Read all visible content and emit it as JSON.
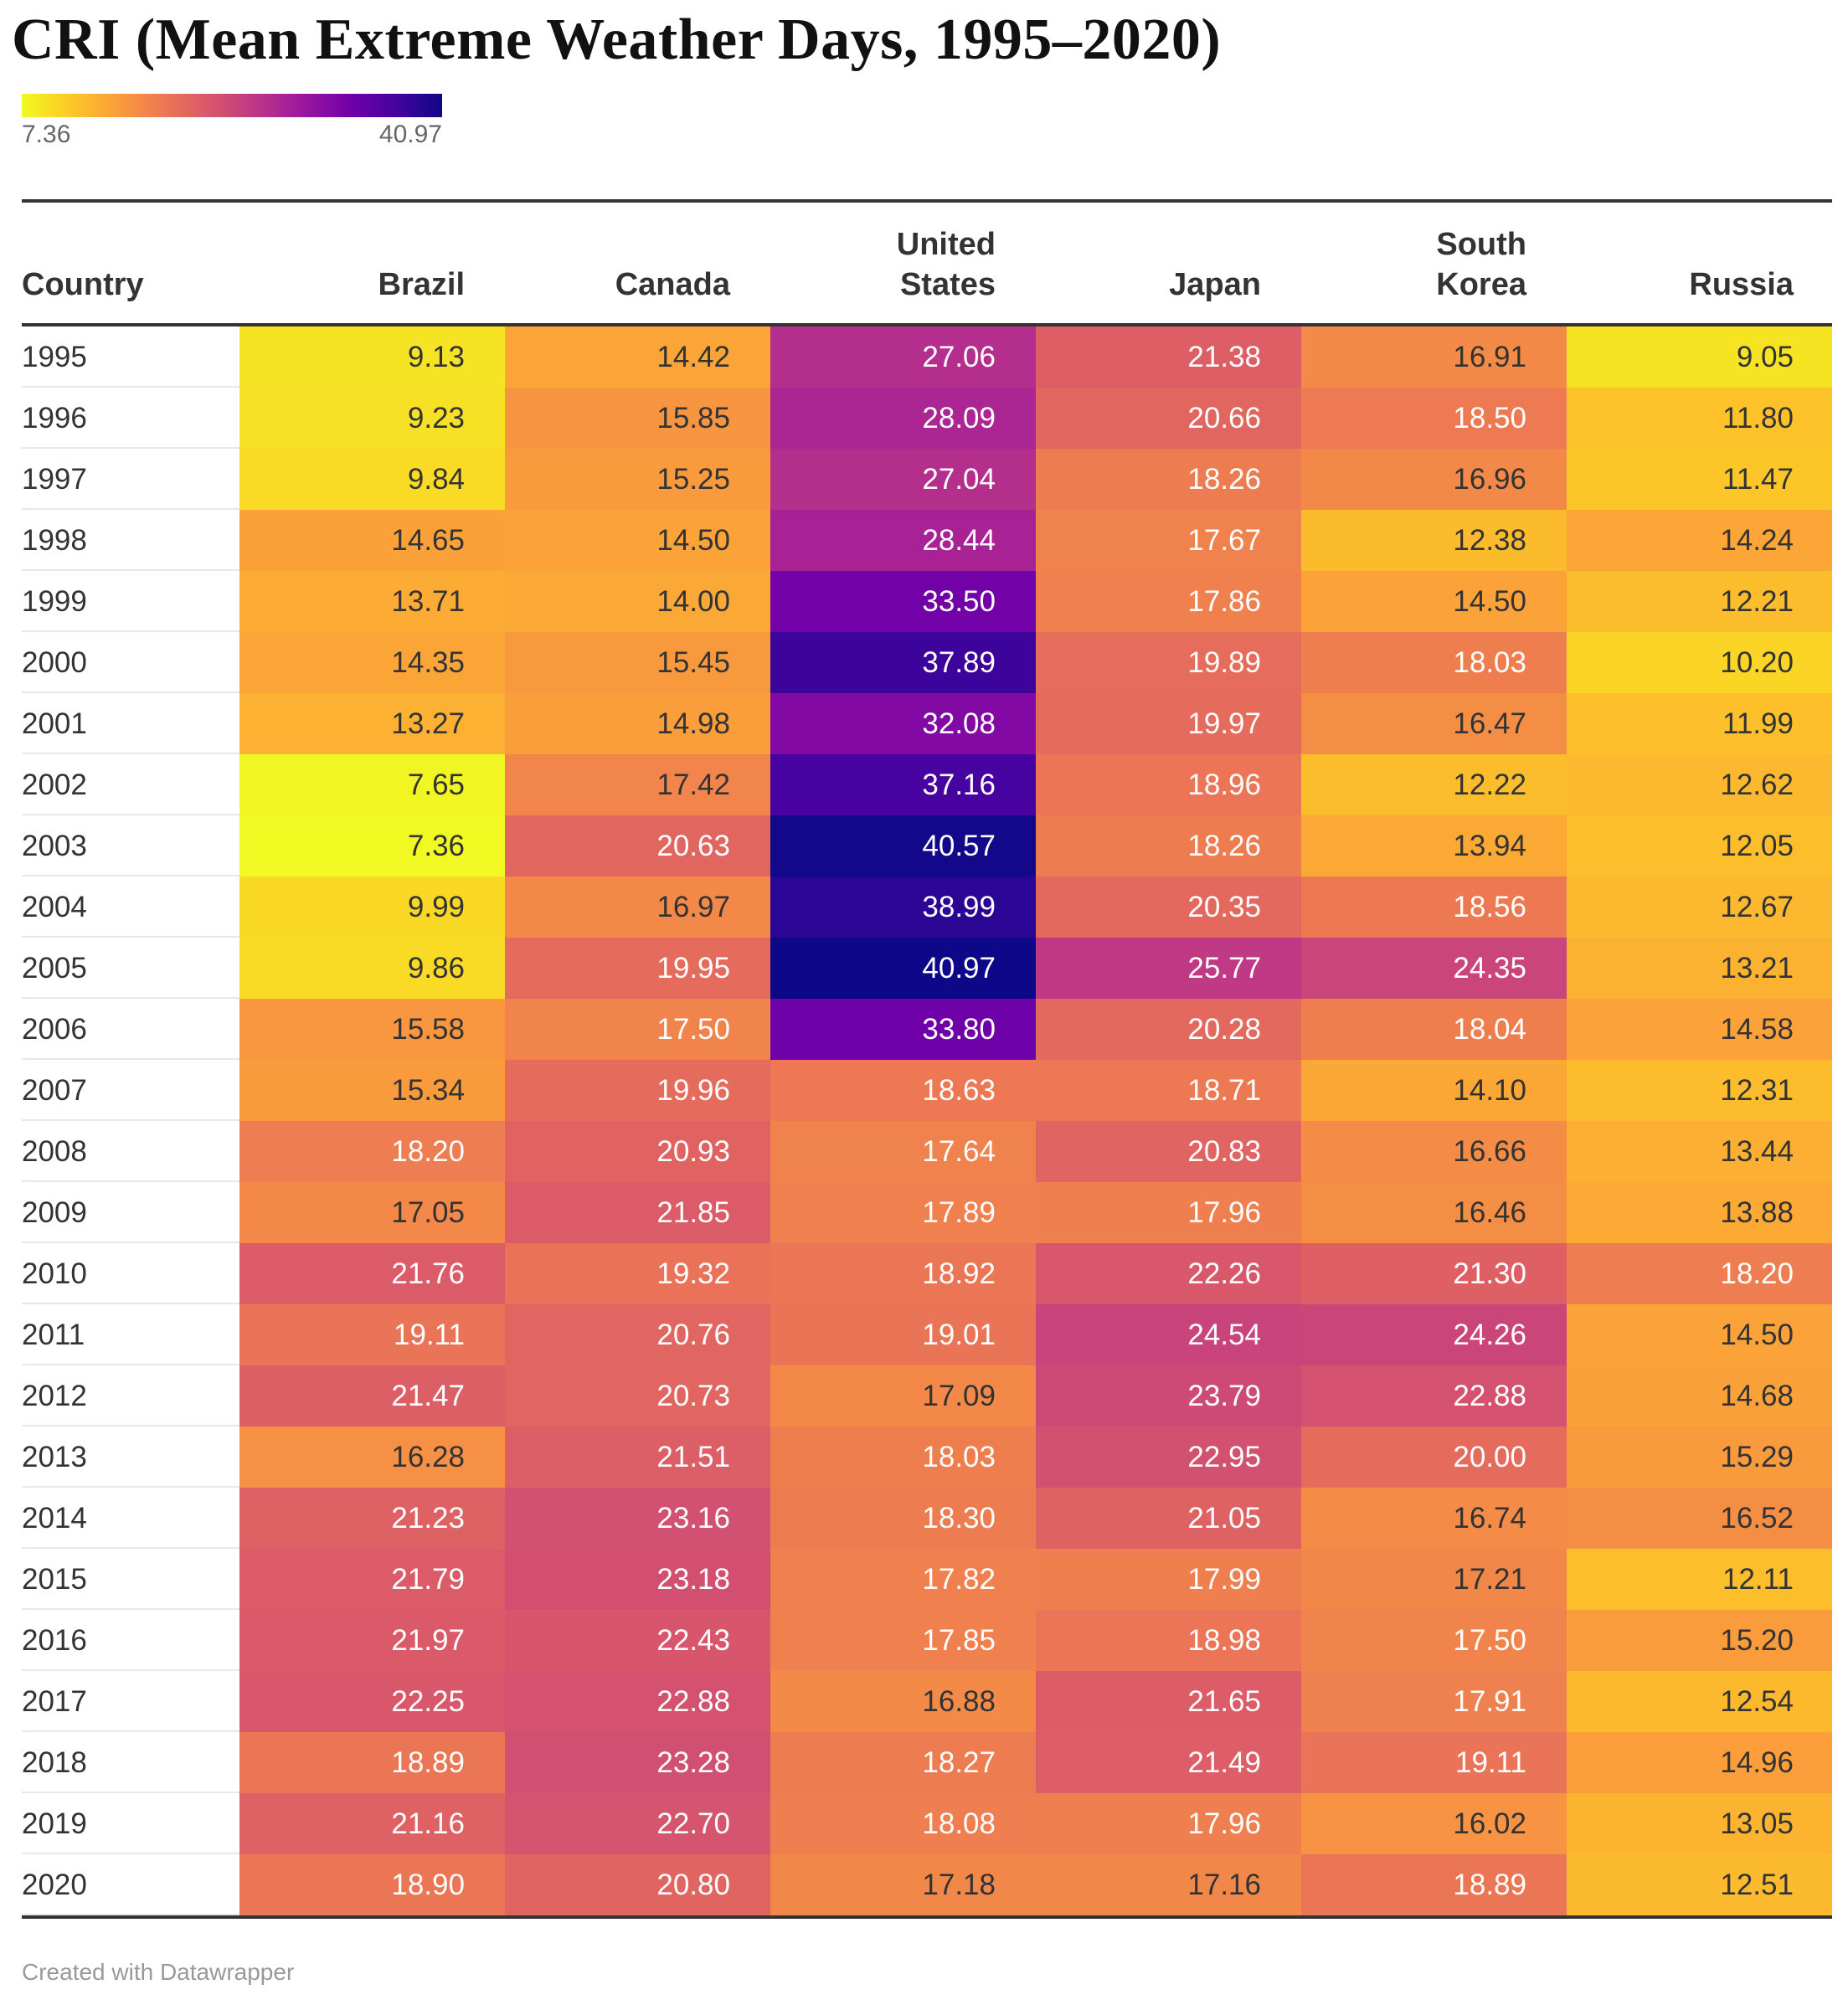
{
  "chart_data": {
    "type": "table",
    "title": "CRI (Mean Extreme Weather Days, 1995–2020)",
    "legend": {
      "min": "7.36",
      "max": "40.97",
      "min_value": 7.36,
      "max_value": 40.97
    },
    "row_header": "Country",
    "columns": [
      {
        "label_lines": [
          "Brazil"
        ]
      },
      {
        "label_lines": [
          "Canada"
        ]
      },
      {
        "label_lines": [
          "United",
          "States"
        ]
      },
      {
        "label_lines": [
          "Japan"
        ]
      },
      {
        "label_lines": [
          "South",
          "Korea"
        ]
      },
      {
        "label_lines": [
          "Russia"
        ]
      }
    ],
    "rows": [
      {
        "year": "1995",
        "values": [
          "9.13",
          "14.42",
          "27.06",
          "21.38",
          "16.91",
          "9.05"
        ]
      },
      {
        "year": "1996",
        "values": [
          "9.23",
          "15.85",
          "28.09",
          "20.66",
          "18.50",
          "11.80"
        ]
      },
      {
        "year": "1997",
        "values": [
          "9.84",
          "15.25",
          "27.04",
          "18.26",
          "16.96",
          "11.47"
        ]
      },
      {
        "year": "1998",
        "values": [
          "14.65",
          "14.50",
          "28.44",
          "17.67",
          "12.38",
          "14.24"
        ]
      },
      {
        "year": "1999",
        "values": [
          "13.71",
          "14.00",
          "33.50",
          "17.86",
          "14.50",
          "12.21"
        ]
      },
      {
        "year": "2000",
        "values": [
          "14.35",
          "15.45",
          "37.89",
          "19.89",
          "18.03",
          "10.20"
        ]
      },
      {
        "year": "2001",
        "values": [
          "13.27",
          "14.98",
          "32.08",
          "19.97",
          "16.47",
          "11.99"
        ]
      },
      {
        "year": "2002",
        "values": [
          "7.65",
          "17.42",
          "37.16",
          "18.96",
          "12.22",
          "12.62"
        ]
      },
      {
        "year": "2003",
        "values": [
          "7.36",
          "20.63",
          "40.57",
          "18.26",
          "13.94",
          "12.05"
        ]
      },
      {
        "year": "2004",
        "values": [
          "9.99",
          "16.97",
          "38.99",
          "20.35",
          "18.56",
          "12.67"
        ]
      },
      {
        "year": "2005",
        "values": [
          "9.86",
          "19.95",
          "40.97",
          "25.77",
          "24.35",
          "13.21"
        ]
      },
      {
        "year": "2006",
        "values": [
          "15.58",
          "17.50",
          "33.80",
          "20.28",
          "18.04",
          "14.58"
        ]
      },
      {
        "year": "2007",
        "values": [
          "15.34",
          "19.96",
          "18.63",
          "18.71",
          "14.10",
          "12.31"
        ]
      },
      {
        "year": "2008",
        "values": [
          "18.20",
          "20.93",
          "17.64",
          "20.83",
          "16.66",
          "13.44"
        ]
      },
      {
        "year": "2009",
        "values": [
          "17.05",
          "21.85",
          "17.89",
          "17.96",
          "16.46",
          "13.88"
        ]
      },
      {
        "year": "2010",
        "values": [
          "21.76",
          "19.32",
          "18.92",
          "22.26",
          "21.30",
          "18.20"
        ]
      },
      {
        "year": "2011",
        "values": [
          "19.11",
          "20.76",
          "19.01",
          "24.54",
          "24.26",
          "14.50"
        ]
      },
      {
        "year": "2012",
        "values": [
          "21.47",
          "20.73",
          "17.09",
          "23.79",
          "22.88",
          "14.68"
        ]
      },
      {
        "year": "2013",
        "values": [
          "16.28",
          "21.51",
          "18.03",
          "22.95",
          "20.00",
          "15.29"
        ]
      },
      {
        "year": "2014",
        "values": [
          "21.23",
          "23.16",
          "18.30",
          "21.05",
          "16.74",
          "16.52"
        ]
      },
      {
        "year": "2015",
        "values": [
          "21.79",
          "23.18",
          "17.82",
          "17.99",
          "17.21",
          "12.11"
        ]
      },
      {
        "year": "2016",
        "values": [
          "21.97",
          "22.43",
          "17.85",
          "18.98",
          "17.50",
          "15.20"
        ]
      },
      {
        "year": "2017",
        "values": [
          "22.25",
          "22.88",
          "16.88",
          "21.65",
          "17.91",
          "12.54"
        ]
      },
      {
        "year": "2018",
        "values": [
          "18.89",
          "23.28",
          "18.27",
          "21.49",
          "19.11",
          "14.96"
        ]
      },
      {
        "year": "2019",
        "values": [
          "21.16",
          "22.70",
          "18.08",
          "17.96",
          "16.02",
          "13.05"
        ]
      },
      {
        "year": "2020",
        "values": [
          "18.90",
          "20.80",
          "17.18",
          "17.16",
          "18.89",
          "12.51"
        ]
      }
    ]
  },
  "footer": {
    "credit": "Created with Datawrapper"
  },
  "colors": {
    "scale": [
      "#f0f921",
      "#fdca26",
      "#fb9f3a",
      "#ed7953",
      "#d8576b",
      "#bd3786",
      "#9c179e",
      "#7201a8",
      "#46039f",
      "#0d0887"
    ],
    "dark_text": "#333333",
    "light_text": "#ffffff"
  }
}
